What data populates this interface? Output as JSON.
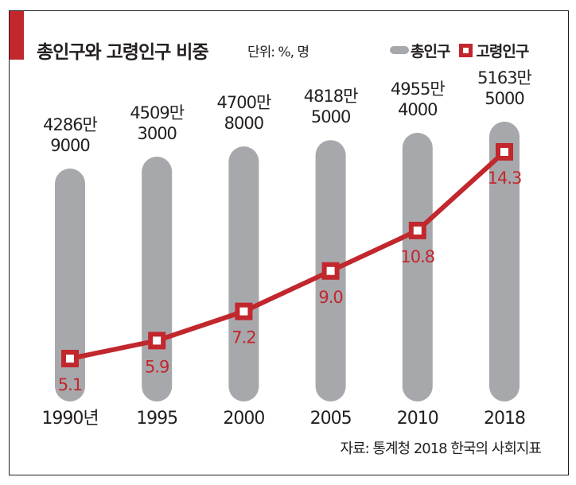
{
  "header": {
    "title": "총인구와 고령인구 비중",
    "unit": "단위: %, 명"
  },
  "legend": [
    {
      "icon": "gray-pill-icon",
      "label": "총인구"
    },
    {
      "icon": "red-square-marker-icon",
      "label": "고령인구"
    }
  ],
  "source": "자료: 통계청 2018 한국의 사회지표",
  "colors": {
    "accent": "#c1272d",
    "bar": "#a7a8ab",
    "line": "#c1272d",
    "text": "#231f20"
  },
  "chart_data": {
    "type": "bar+line",
    "title": "총인구와 고령인구 비중",
    "unit": "단위: %, 명",
    "categories": [
      "1990년",
      "1995",
      "2000",
      "2005",
      "2010",
      "2018"
    ],
    "series": [
      {
        "name": "총인구",
        "type": "bar",
        "values": [
          42869000,
          45093000,
          47008000,
          48185000,
          49554000,
          51635000
        ],
        "labels": [
          [
            "4286만",
            "9000"
          ],
          [
            "4509만",
            "3000"
          ],
          [
            "4700만",
            "8000"
          ],
          [
            "4818만",
            "5000"
          ],
          [
            "4955만",
            "4000"
          ],
          [
            "5163만",
            "5000"
          ]
        ]
      },
      {
        "name": "고령인구",
        "type": "line",
        "unit": "%",
        "values": [
          5.1,
          5.9,
          7.2,
          9.0,
          10.8,
          14.3
        ],
        "labels": [
          "5.1",
          "5.9",
          "7.2",
          "9.0",
          "10.8",
          "14.3"
        ]
      }
    ],
    "legend_position": "top-right",
    "grid": false,
    "source": "자료: 통계청 2018 한국의 사회지표"
  }
}
